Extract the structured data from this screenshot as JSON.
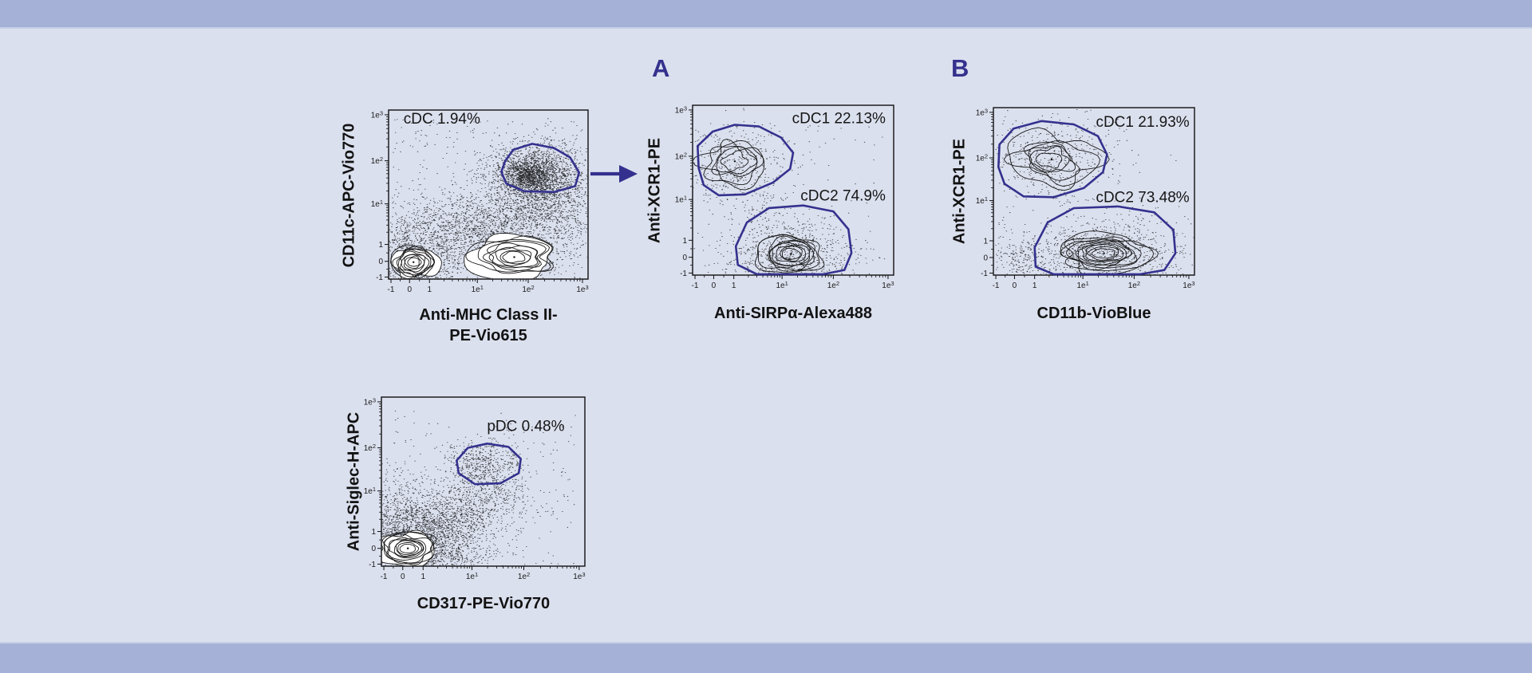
{
  "figure": {
    "bg_color": "#dbe0ee",
    "band_color": "#a5b1d6",
    "accent_color": "#34318e",
    "panel_a_label": "A",
    "panel_b_label": "B"
  },
  "chart_data": [
    {
      "id": "cdc-gating-plot",
      "type": "scatter",
      "subtype": "flow-cytometry-contour",
      "xlabel": "Anti-MHC Class II-PE-Vio615",
      "xlabel_lines": [
        "Anti-MHC Class II-",
        "PE-Vio615"
      ],
      "ylabel": "CD11c-APC-Vio770",
      "axis_scale": "biexponential",
      "xlim": [
        "-1",
        "1e3"
      ],
      "ylim": [
        "-1",
        "1e3"
      ],
      "grid": false,
      "ticks": [
        {
          "label": "-1",
          "pos": 0.012
        },
        {
          "label": "0",
          "pos": 0.105
        },
        {
          "label": "1",
          "pos": 0.205
        },
        {
          "label": "1e1",
          "pos": 0.445
        },
        {
          "label": "1e2",
          "pos": 0.7
        },
        {
          "label": "1e3",
          "pos": 0.972
        }
      ],
      "gates": [
        {
          "name": "cDC",
          "value_pct": 1.94,
          "label": "cDC 1.94%",
          "label_pos": [
            0.075,
            0.92
          ],
          "label_anchor": "start",
          "polygon": [
            [
              0.585,
              0.7
            ],
            [
              0.625,
              0.765
            ],
            [
              0.72,
              0.8
            ],
            [
              0.83,
              0.775
            ],
            [
              0.91,
              0.72
            ],
            [
              0.955,
              0.63
            ],
            [
              0.935,
              0.55
            ],
            [
              0.83,
              0.515
            ],
            [
              0.68,
              0.52
            ],
            [
              0.59,
              0.565
            ],
            [
              0.565,
              0.635
            ]
          ]
        }
      ],
      "populations": [
        {
          "kind": "cluster",
          "cx": 0.12,
          "cy": 0.18,
          "sx": 0.13,
          "sy": 0.12,
          "n": 800
        },
        {
          "kind": "cluster",
          "cx": 0.34,
          "cy": 0.3,
          "sx": 0.13,
          "sy": 0.11,
          "n": 550
        },
        {
          "kind": "cluster",
          "cx": 0.52,
          "cy": 0.33,
          "sx": 0.13,
          "sy": 0.1,
          "n": 550
        },
        {
          "kind": "cluster",
          "cx": 0.66,
          "cy": 0.22,
          "sx": 0.18,
          "sy": 0.13,
          "n": 800
        },
        {
          "kind": "cluster",
          "cx": 0.76,
          "cy": 0.46,
          "sx": 0.12,
          "sy": 0.11,
          "n": 650
        },
        {
          "kind": "cluster",
          "cx": 0.72,
          "cy": 0.62,
          "sx": 0.11,
          "sy": 0.085,
          "n": 1600
        },
        {
          "kind": "cluster",
          "cx": 0.7,
          "cy": 0.61,
          "sx": 0.055,
          "sy": 0.05,
          "n": 700
        },
        {
          "kind": "cluster",
          "cx": 0.88,
          "cy": 0.5,
          "sx": 0.08,
          "sy": 0.13,
          "n": 400
        },
        {
          "kind": "cluster",
          "cx": 0.13,
          "cy": 0.08,
          "sx": 0.13,
          "sy": 0.07,
          "n": 350
        },
        {
          "kind": "sprinkle",
          "x0": 0.02,
          "x1": 0.97,
          "y0": 0.0,
          "y1": 0.95,
          "n": 450
        },
        {
          "kind": "contour",
          "cx": 0.125,
          "cy": 0.1,
          "rx": 0.115,
          "ry": 0.1,
          "rings": 10,
          "irregularity": 0.22,
          "fill": "#ffffff",
          "dot": true
        },
        {
          "kind": "contour",
          "cx": 0.63,
          "cy": 0.13,
          "rx": 0.21,
          "ry": 0.115,
          "rings": 9,
          "irregularity": 0.26,
          "fill": "#ffffff",
          "dot": true
        }
      ]
    },
    {
      "id": "cdc1-cdc2-sirpa-plot",
      "panel": "A",
      "type": "scatter",
      "subtype": "flow-cytometry-contour",
      "xlabel": "Anti-SIRPα-Alexa488",
      "ylabel": "Anti-XCR1-PE",
      "axis_scale": "biexponential",
      "xlim": [
        "-1",
        "1e3"
      ],
      "ylim": [
        "-1",
        "1e3"
      ],
      "grid": false,
      "ticks": [
        {
          "label": "-1",
          "pos": 0.012
        },
        {
          "label": "0",
          "pos": 0.105
        },
        {
          "label": "1",
          "pos": 0.205
        },
        {
          "label": "1e1",
          "pos": 0.445
        },
        {
          "label": "1e2",
          "pos": 0.7
        },
        {
          "label": "1e3",
          "pos": 0.972
        }
      ],
      "gates": [
        {
          "name": "cDC1",
          "value_pct": 22.13,
          "label": "cDC1 22.13%",
          "label_pos": [
            0.96,
            0.895
          ],
          "label_anchor": "end",
          "polygon": [
            [
              0.03,
              0.63
            ],
            [
              0.025,
              0.76
            ],
            [
              0.1,
              0.845
            ],
            [
              0.21,
              0.885
            ],
            [
              0.33,
              0.875
            ],
            [
              0.44,
              0.81
            ],
            [
              0.5,
              0.72
            ],
            [
              0.485,
              0.625
            ],
            [
              0.4,
              0.545
            ],
            [
              0.26,
              0.475
            ],
            [
              0.13,
              0.47
            ],
            [
              0.055,
              0.53
            ]
          ]
        },
        {
          "name": "cDC2",
          "value_pct": 74.9,
          "label": "cDC2 74.9%",
          "label_pos": [
            0.96,
            0.44
          ],
          "label_anchor": "end",
          "polygon": [
            [
              0.225,
              0.06
            ],
            [
              0.215,
              0.17
            ],
            [
              0.27,
              0.31
            ],
            [
              0.38,
              0.395
            ],
            [
              0.55,
              0.41
            ],
            [
              0.7,
              0.375
            ],
            [
              0.775,
              0.27
            ],
            [
              0.79,
              0.13
            ],
            [
              0.755,
              0.03
            ],
            [
              0.65,
              0.005
            ],
            [
              0.32,
              0.005
            ]
          ]
        }
      ],
      "populations": [
        {
          "kind": "cluster",
          "cx": 0.21,
          "cy": 0.67,
          "sx": 0.14,
          "sy": 0.12,
          "n": 400
        },
        {
          "kind": "cluster",
          "cx": 0.49,
          "cy": 0.12,
          "sx": 0.16,
          "sy": 0.1,
          "n": 750
        },
        {
          "kind": "cluster",
          "cx": 0.3,
          "cy": 0.4,
          "sx": 0.09,
          "sy": 0.1,
          "n": 90
        },
        {
          "kind": "sprinkle",
          "x0": 0.02,
          "x1": 0.95,
          "y0": 0.0,
          "y1": 0.9,
          "n": 130
        },
        {
          "kind": "contour",
          "cx": 0.21,
          "cy": 0.67,
          "rx": 0.17,
          "ry": 0.15,
          "rings": 5,
          "irregularity": 0.33,
          "fill": null,
          "dot": true
        },
        {
          "kind": "contour",
          "cx": 0.49,
          "cy": 0.125,
          "rx": 0.165,
          "ry": 0.115,
          "rings": 9,
          "irregularity": 0.2,
          "fill": null,
          "dot": true
        }
      ]
    },
    {
      "id": "cdc1-cdc2-cd11b-plot",
      "panel": "B",
      "type": "scatter",
      "subtype": "flow-cytometry-contour",
      "xlabel": "CD11b-VioBlue",
      "ylabel": "Anti-XCR1-PE",
      "axis_scale": "biexponential",
      "xlim": [
        "-1",
        "1e3"
      ],
      "ylim": [
        "-1",
        "1e3"
      ],
      "grid": false,
      "ticks": [
        {
          "label": "-1",
          "pos": 0.012
        },
        {
          "label": "0",
          "pos": 0.105
        },
        {
          "label": "1",
          "pos": 0.205
        },
        {
          "label": "1e1",
          "pos": 0.445
        },
        {
          "label": "1e2",
          "pos": 0.7
        },
        {
          "label": "1e3",
          "pos": 0.972
        }
      ],
      "gates": [
        {
          "name": "cDC1",
          "value_pct": 21.93,
          "label": "cDC1 21.93%",
          "label_pos": [
            0.975,
            0.885
          ],
          "label_anchor": "end",
          "polygon": [
            [
              0.025,
              0.645
            ],
            [
              0.03,
              0.78
            ],
            [
              0.1,
              0.875
            ],
            [
              0.24,
              0.92
            ],
            [
              0.4,
              0.9
            ],
            [
              0.52,
              0.83
            ],
            [
              0.565,
              0.72
            ],
            [
              0.545,
              0.615
            ],
            [
              0.45,
              0.52
            ],
            [
              0.3,
              0.465
            ],
            [
              0.15,
              0.47
            ],
            [
              0.055,
              0.545
            ]
          ]
        },
        {
          "name": "cDC2",
          "value_pct": 73.48,
          "label": "cDC2 73.48%",
          "label_pos": [
            0.975,
            0.435
          ],
          "label_anchor": "end",
          "polygon": [
            [
              0.21,
              0.05
            ],
            [
              0.205,
              0.165
            ],
            [
              0.27,
              0.315
            ],
            [
              0.4,
              0.4
            ],
            [
              0.62,
              0.41
            ],
            [
              0.8,
              0.375
            ],
            [
              0.895,
              0.27
            ],
            [
              0.905,
              0.13
            ],
            [
              0.85,
              0.03
            ],
            [
              0.73,
              0.005
            ],
            [
              0.3,
              0.005
            ]
          ]
        }
      ],
      "populations": [
        {
          "kind": "cluster",
          "cx": 0.29,
          "cy": 0.69,
          "sx": 0.16,
          "sy": 0.12,
          "n": 480
        },
        {
          "kind": "cluster",
          "cx": 0.55,
          "cy": 0.13,
          "sx": 0.2,
          "sy": 0.1,
          "n": 850
        },
        {
          "kind": "cluster",
          "cx": 0.14,
          "cy": 0.1,
          "sx": 0.08,
          "sy": 0.06,
          "n": 180
        },
        {
          "kind": "sprinkle",
          "x0": 0.02,
          "x1": 0.95,
          "y0": 0.0,
          "y1": 0.9,
          "n": 140
        },
        {
          "kind": "contour",
          "cx": 0.29,
          "cy": 0.69,
          "rx": 0.2,
          "ry": 0.155,
          "rings": 6,
          "irregularity": 0.35,
          "fill": null,
          "dot": true
        },
        {
          "kind": "contour",
          "cx": 0.55,
          "cy": 0.13,
          "rx": 0.215,
          "ry": 0.11,
          "rings": 10,
          "irregularity": 0.22,
          "fill": null,
          "dot": true
        }
      ]
    },
    {
      "id": "pdc-gating-plot",
      "type": "scatter",
      "subtype": "flow-cytometry-contour",
      "xlabel": "CD317-PE-Vio770",
      "ylabel": "Anti-Siglec-H-APC",
      "axis_scale": "biexponential",
      "xlim": [
        "-1",
        "1e3"
      ],
      "ylim": [
        "-1",
        "1e3"
      ],
      "grid": false,
      "ticks": [
        {
          "label": "-1",
          "pos": 0.012
        },
        {
          "label": "0",
          "pos": 0.105
        },
        {
          "label": "1",
          "pos": 0.205
        },
        {
          "label": "1e1",
          "pos": 0.445
        },
        {
          "label": "1e2",
          "pos": 0.7
        },
        {
          "label": "1e3",
          "pos": 0.972
        }
      ],
      "gates": [
        {
          "name": "pDC",
          "value_pct": 0.48,
          "label": "pDC 0.48%",
          "label_pos": [
            0.9,
            0.8
          ],
          "label_anchor": "end",
          "polygon": [
            [
              0.38,
              0.55
            ],
            [
              0.37,
              0.625
            ],
            [
              0.425,
              0.7
            ],
            [
              0.52,
              0.725
            ],
            [
              0.625,
              0.705
            ],
            [
              0.685,
              0.635
            ],
            [
              0.675,
              0.55
            ],
            [
              0.585,
              0.49
            ],
            [
              0.46,
              0.485
            ]
          ]
        }
      ],
      "populations": [
        {
          "kind": "cluster",
          "cx": 0.14,
          "cy": 0.14,
          "sx": 0.15,
          "sy": 0.13,
          "n": 2000
        },
        {
          "kind": "cluster",
          "cx": 0.32,
          "cy": 0.26,
          "sx": 0.13,
          "sy": 0.11,
          "n": 700
        },
        {
          "kind": "cluster",
          "cx": 0.45,
          "cy": 0.36,
          "sx": 0.1,
          "sy": 0.09,
          "n": 350
        },
        {
          "kind": "cluster",
          "cx": 0.08,
          "cy": 0.32,
          "sx": 0.06,
          "sy": 0.13,
          "n": 250
        },
        {
          "kind": "cluster",
          "cx": 0.27,
          "cy": 0.06,
          "sx": 0.16,
          "sy": 0.05,
          "n": 350
        },
        {
          "kind": "cluster",
          "cx": 0.5,
          "cy": 0.6,
          "sx": 0.09,
          "sy": 0.07,
          "n": 500
        },
        {
          "kind": "cluster",
          "cx": 0.6,
          "cy": 0.45,
          "sx": 0.08,
          "sy": 0.08,
          "n": 150
        },
        {
          "kind": "sprinkle",
          "x0": 0.02,
          "x1": 0.96,
          "y0": 0.0,
          "y1": 0.92,
          "n": 300
        },
        {
          "kind": "contour",
          "cx": 0.13,
          "cy": 0.105,
          "rx": 0.145,
          "ry": 0.1,
          "rings": 10,
          "irregularity": 0.22,
          "fill": "#ffffff",
          "dot": true
        }
      ]
    }
  ]
}
